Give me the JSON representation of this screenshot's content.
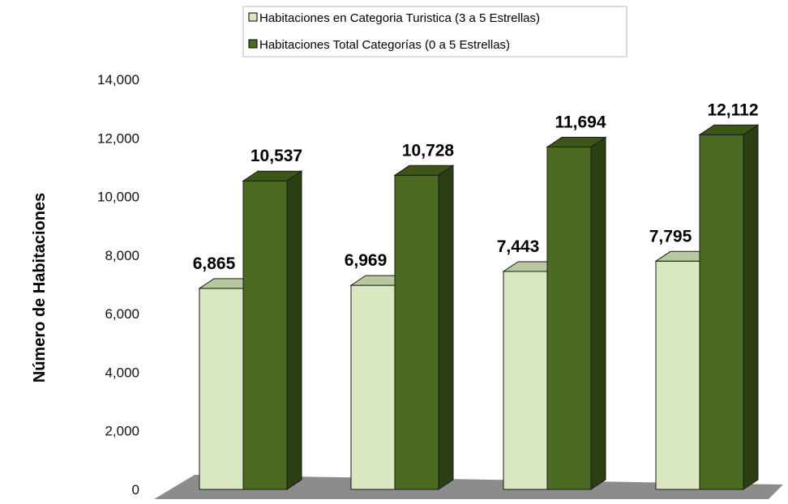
{
  "chart_data": {
    "type": "bar",
    "ylabel": "Número de Habitaciones",
    "ylim": [
      0,
      14000
    ],
    "yticks": [
      0,
      2000,
      4000,
      6000,
      8000,
      10000,
      12000,
      14000
    ],
    "ytick_labels": [
      "0",
      "2,000",
      "4,000",
      "6,000",
      "8,000",
      "10,000",
      "12,000",
      "14,000"
    ],
    "categories_count": 4,
    "legend_placement": "top-center",
    "three_d": true,
    "series": [
      {
        "name": "Habitaciones en Categoria Turistica (3 a 5 Estrellas)",
        "color": "#d9e8c0",
        "values": [
          6865,
          6969,
          7443,
          7795
        ],
        "labels": [
          "6,865",
          "6,969",
          "7,443",
          "7,795"
        ]
      },
      {
        "name": "Habitaciones Total Categorías (0 a 5 Estrellas)",
        "color": "#4a6a22",
        "values": [
          10537,
          10728,
          11694,
          12112
        ],
        "labels": [
          "10,537",
          "10,728",
          "11,694",
          "12,112"
        ]
      }
    ]
  }
}
